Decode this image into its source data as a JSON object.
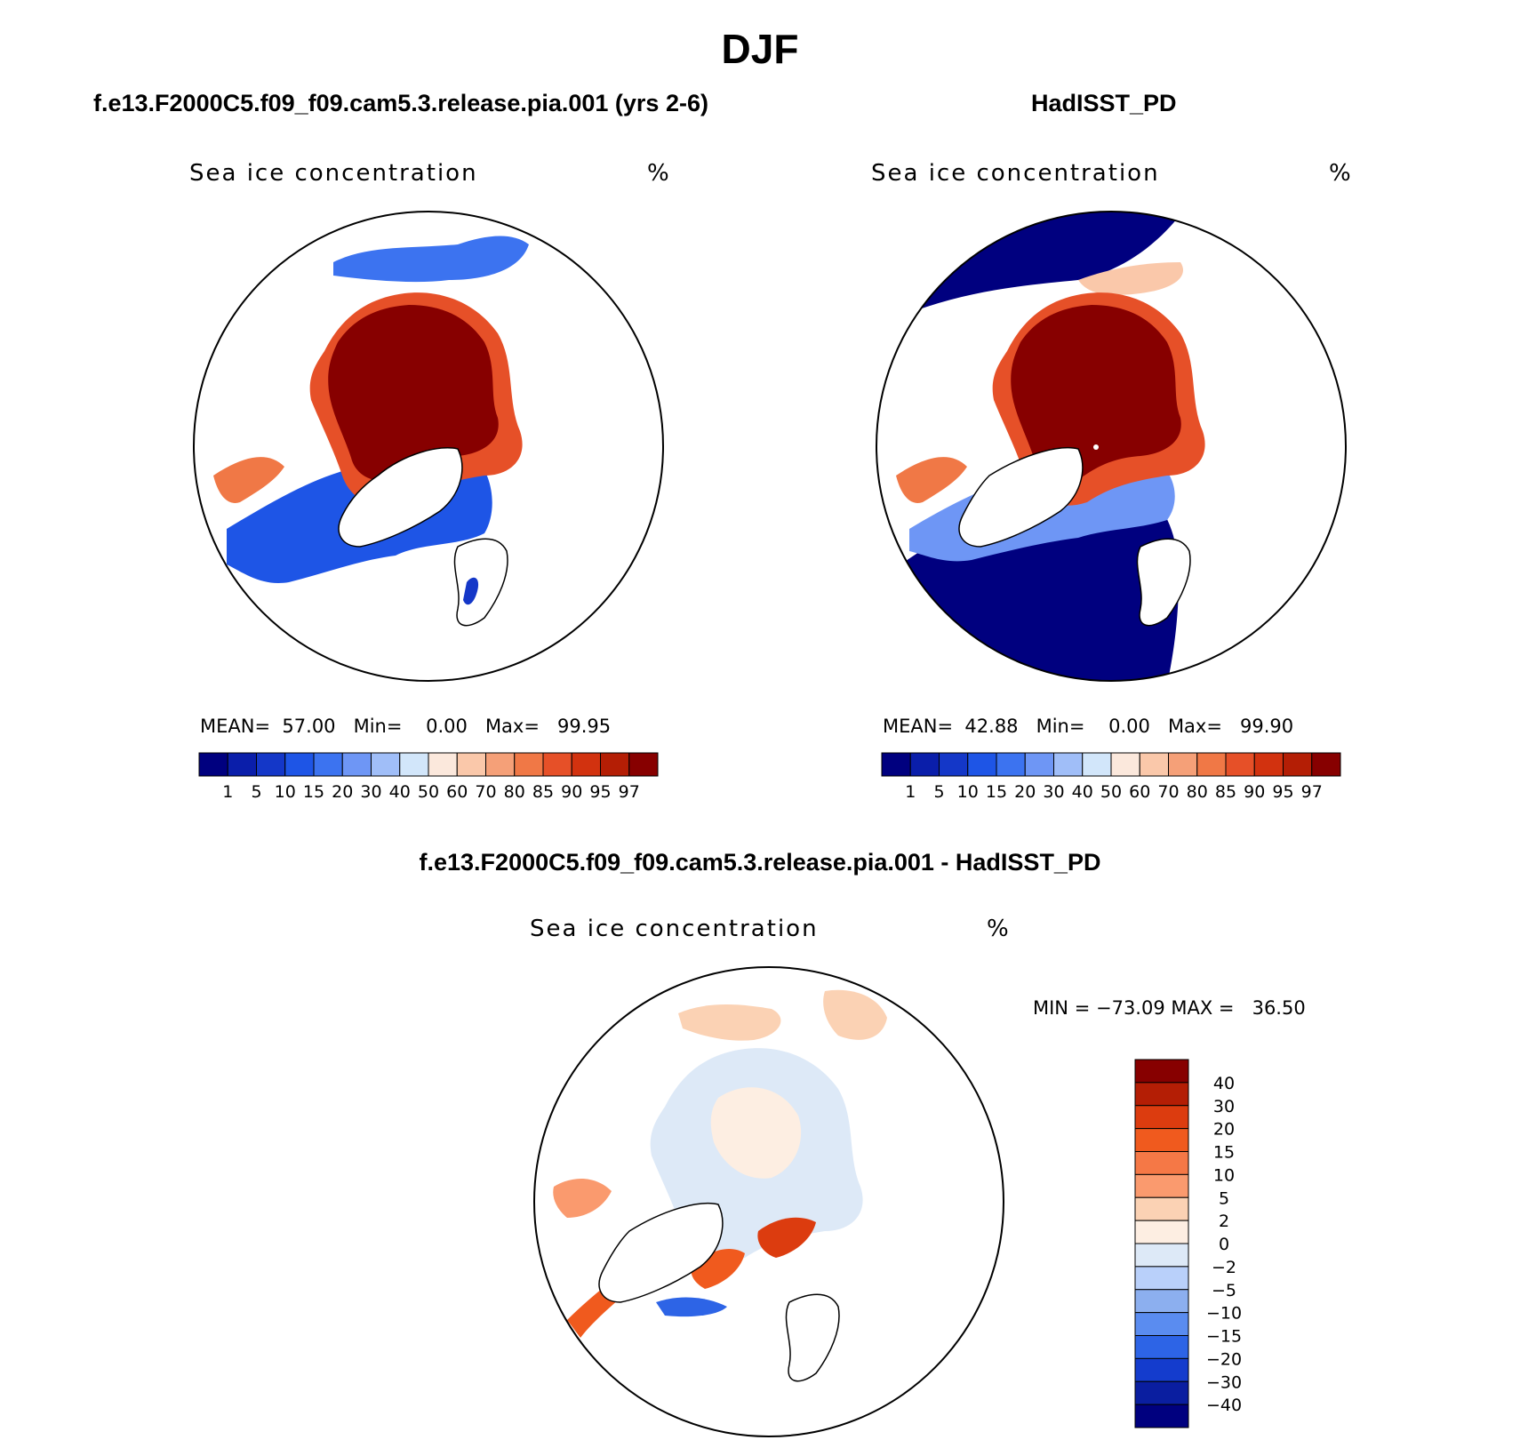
{
  "figure": {
    "title": "DJF"
  },
  "panels": [
    {
      "case_title": "f.e13.F2000C5.f09_f09.cam5.3.release.pia.001 (yrs 2-6)",
      "field_label": "Sea ice concentration",
      "units": "%",
      "stats": {
        "mean_label": "MEAN=",
        "mean": "57.00",
        "min_label": "Min=",
        "min": "0.00",
        "max_label": "Max=",
        "max": "99.95"
      }
    },
    {
      "case_title": "HadISST_PD",
      "field_label": "Sea ice concentration",
      "units": "%",
      "stats": {
        "mean_label": "MEAN=",
        "mean": "42.88",
        "min_label": "Min=",
        "min": "0.00",
        "max_label": "Max=",
        "max": "99.90"
      }
    },
    {
      "case_title": "f.e13.F2000C5.f09_f09.cam5.3.release.pia.001 - HadISST_PD",
      "field_label": "Sea ice concentration",
      "units": "%",
      "stats": {
        "min_label": "MIN =",
        "min": "−73.09",
        "max_label": "MAX =",
        "max": "36.50"
      }
    }
  ],
  "colorbars": {
    "concentration": {
      "colors": [
        "#00007f",
        "#0a1eaa",
        "#1437c8",
        "#1e55e6",
        "#3c73f0",
        "#6e96f5",
        "#a0bef8",
        "#d2e6fa",
        "#fbe8dc",
        "#fac8aa",
        "#f5a078",
        "#f07846",
        "#e65028",
        "#d2320f",
        "#b41e05",
        "#870000"
      ],
      "tick_labels": [
        "1",
        "5",
        "10",
        "15",
        "20",
        "30",
        "40",
        "50",
        "60",
        "70",
        "80",
        "85",
        "90",
        "95",
        "97"
      ]
    },
    "difference": {
      "colors": [
        "#870000",
        "#b41e05",
        "#dc3c0f",
        "#f05a1e",
        "#f57846",
        "#fa9a6e",
        "#fbd2b4",
        "#fdeee2",
        "#dde9f7",
        "#b9d0fa",
        "#8cafef",
        "#5a8cf0",
        "#2d64e6",
        "#143ccd",
        "#0a1ea0",
        "#00007f"
      ],
      "tick_labels": [
        "40",
        "30",
        "20",
        "15",
        "10",
        "5",
        "2",
        "0",
        "−2",
        "−5",
        "−10",
        "−15",
        "−20",
        "−30",
        "−40"
      ]
    }
  }
}
